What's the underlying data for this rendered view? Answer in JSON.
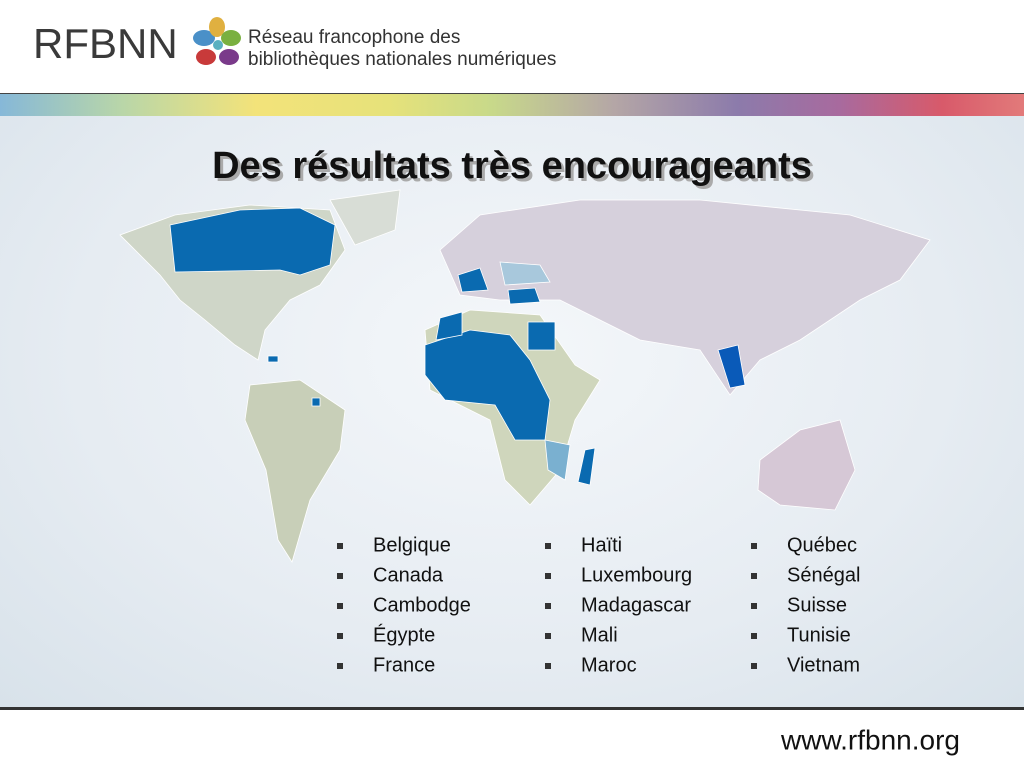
{
  "header": {
    "logo_text": "RFBNN",
    "tagline": [
      "Réseau francophone des",
      "bibliothèques nationales numériques"
    ]
  },
  "title": "Des résultats très encourageants",
  "countries": [
    [
      "Belgique",
      "Canada",
      "Cambodge",
      "Égypte",
      "France"
    ],
    [
      "Haïti",
      "Luxembourg",
      "Madagascar",
      "Mali",
      "Maroc"
    ],
    [
      "Québec",
      "Sénégal",
      "Suisse",
      "Tunisie",
      "Vietnam"
    ]
  ],
  "footer": {
    "url": "www.rfbnn.org"
  }
}
